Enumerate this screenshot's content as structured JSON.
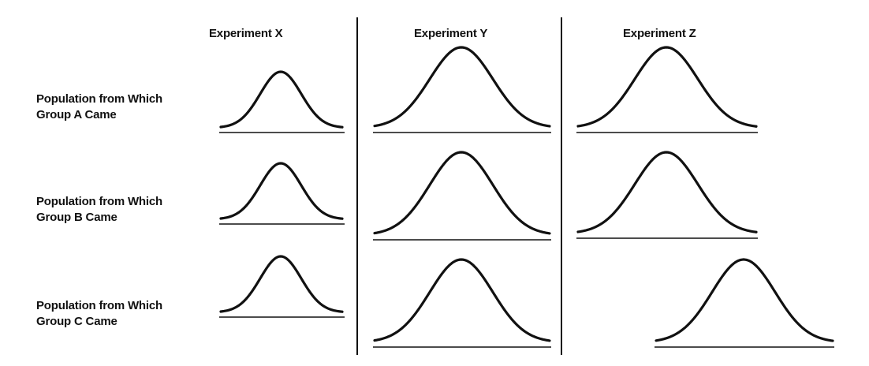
{
  "columns": [
    {
      "title": "Experiment X"
    },
    {
      "title": "Experiment Y"
    },
    {
      "title": "Experiment Z"
    }
  ],
  "rows": [
    {
      "label_line1": "Population from Which",
      "label_line2": "Group A Came"
    },
    {
      "label_line1": "Population from Which",
      "label_line2": "Group B Came"
    },
    {
      "label_line1": "Population from Which",
      "label_line2": "Group C Came"
    }
  ],
  "colors": {
    "ink": "#111111",
    "background": "#ffffff"
  }
}
